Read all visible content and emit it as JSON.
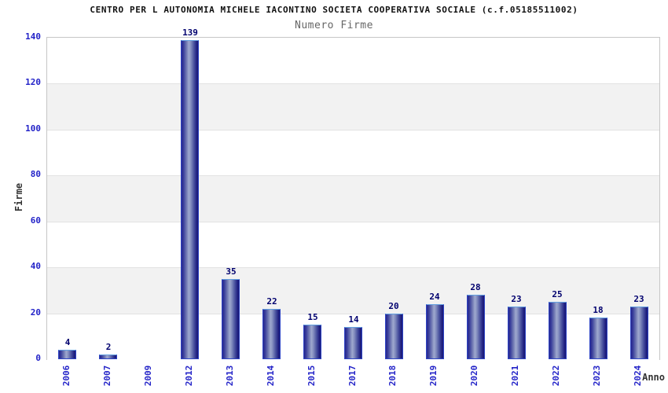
{
  "header": {
    "title": "CENTRO PER L AUTONOMIA MICHELE IACONTINO SOCIETA COOPERATIVA SOCIALE (c.f.05185511002)"
  },
  "chart_data": {
    "type": "bar",
    "title": "Numero Firme",
    "categories": [
      "2006",
      "2007",
      "2009",
      "2012",
      "2013",
      "2014",
      "2015",
      "2017",
      "2018",
      "2019",
      "2020",
      "2021",
      "2022",
      "2023",
      "2024"
    ],
    "values": [
      4,
      2,
      0,
      139,
      35,
      22,
      15,
      14,
      20,
      24,
      28,
      23,
      25,
      18,
      23
    ],
    "xlabel": "Anno",
    "ylabel": "Firme",
    "ylim": [
      0,
      140
    ],
    "yticks": [
      0,
      20,
      40,
      60,
      80,
      100,
      120,
      140
    ],
    "ytick_interval": 20,
    "grid": "alternating-horizontal-bands",
    "legend": "none",
    "colors": {
      "bar_dark": "#1a1a74",
      "bar_light": "#9ea8ce",
      "bar_border": "#2e44c4",
      "bar_border_top": "#63a0e0",
      "tick_label": "#2323c8",
      "value_label": "#00006e",
      "axis_title": "#333333",
      "title_text": "#111111",
      "subtitle_text": "#666666",
      "band_gray": "#f2f2f2",
      "band_white": "#ffffff",
      "band_line": "#e2e2e2",
      "plot_border": "#c6c6c6",
      "background": "#ffffff"
    }
  }
}
